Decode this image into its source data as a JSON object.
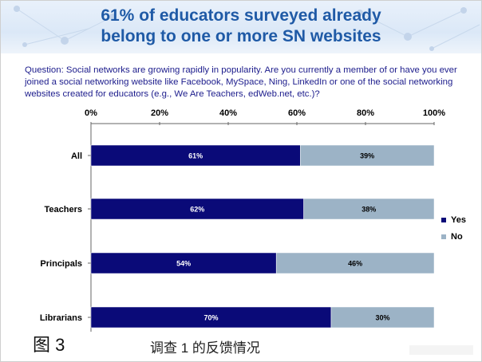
{
  "title_line1": "61% of educators surveyed already",
  "title_line2": "belong to one or more SN websites",
  "question": "Question: Social networks are growing rapidly in popularity.  Are you currently a member of or have you ever joined a social networking website like Facebook, MySpace, Ning, LinkedIn or one of the social networking websites created for educators (e.g., We Are Teachers, edWeb.net, etc.)?",
  "caption": {
    "figure": "图 3",
    "text": "调查 1 的反馈情况"
  },
  "chart_data": {
    "type": "bar",
    "orientation": "horizontal",
    "stacked": true,
    "categories": [
      "All",
      "Teachers",
      "Principals",
      "Librarians"
    ],
    "series": [
      {
        "name": "Yes",
        "values": [
          61,
          62,
          54,
          70
        ],
        "labels": [
          "61%",
          "62%",
          "54%",
          "70%"
        ],
        "color": "#0a0a78",
        "label_color": "#ffffff"
      },
      {
        "name": "No",
        "values": [
          39,
          38,
          46,
          30
        ],
        "labels": [
          "39%",
          "38%",
          "46%",
          "30%"
        ],
        "color": "#9cb3c6",
        "label_color": "#000000"
      }
    ],
    "xlim": [
      0,
      100
    ],
    "xticks": [
      "0%",
      "20%",
      "40%",
      "60%",
      "80%",
      "100%"
    ],
    "x_axis_position": "top",
    "grid": false,
    "legend": "right"
  }
}
